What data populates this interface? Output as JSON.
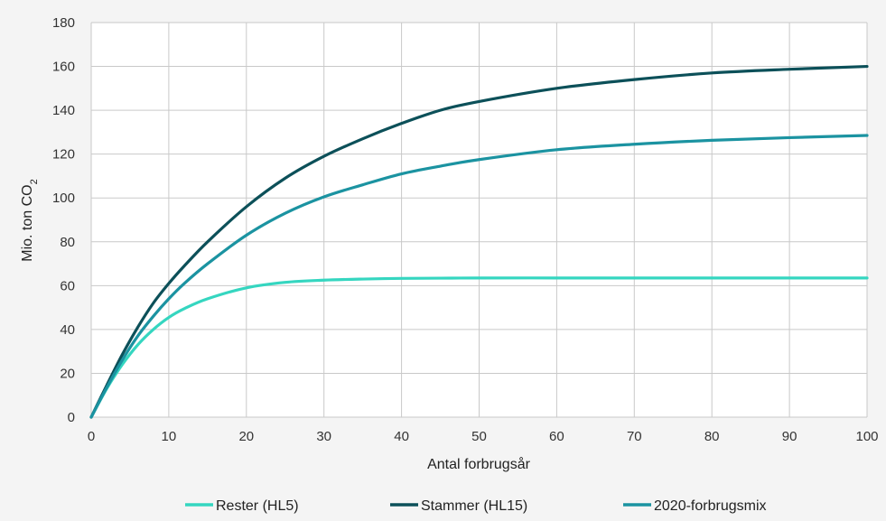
{
  "chart_data": {
    "type": "line",
    "title": "",
    "xlabel": "Antal forbrugsår",
    "ylabel": {
      "prefix": "Mio. ton CO",
      "subscript": "2"
    },
    "xlim": [
      0,
      100
    ],
    "ylim": [
      0,
      180
    ],
    "xticks": [
      0,
      10,
      20,
      30,
      40,
      50,
      60,
      70,
      80,
      90,
      100
    ],
    "yticks": [
      0,
      20,
      40,
      60,
      80,
      100,
      120,
      140,
      160,
      180
    ],
    "grid": "both",
    "legend_position": "bottom",
    "x": [
      0,
      2,
      4,
      6,
      8,
      10,
      12,
      15,
      20,
      25,
      30,
      35,
      40,
      45,
      50,
      60,
      70,
      80,
      90,
      100
    ],
    "series": [
      {
        "name": "Rester (HL5)",
        "color": "#35d6c0",
        "values": [
          0,
          13,
          24,
          33,
          40,
          45.5,
          49.5,
          54,
          59,
          61.5,
          62.5,
          63,
          63.3,
          63.4,
          63.5,
          63.5,
          63.5,
          63.5,
          63.5,
          63.5
        ]
      },
      {
        "name": "Stammer (HL15)",
        "color": "#0c5059",
        "values": [
          0,
          14.5,
          28.5,
          41,
          52,
          61,
          69,
          80,
          96,
          109,
          119,
          127,
          134,
          140,
          144,
          150,
          154,
          157,
          158.7,
          160
        ]
      },
      {
        "name": "2020-forbrugsmix",
        "color": "#1b93a1",
        "values": [
          0,
          13.5,
          26,
          37,
          46,
          54,
          61,
          70,
          83,
          93,
          100.5,
          106,
          111,
          114.5,
          117.5,
          122,
          124.5,
          126.3,
          127.5,
          128.5
        ]
      }
    ]
  }
}
